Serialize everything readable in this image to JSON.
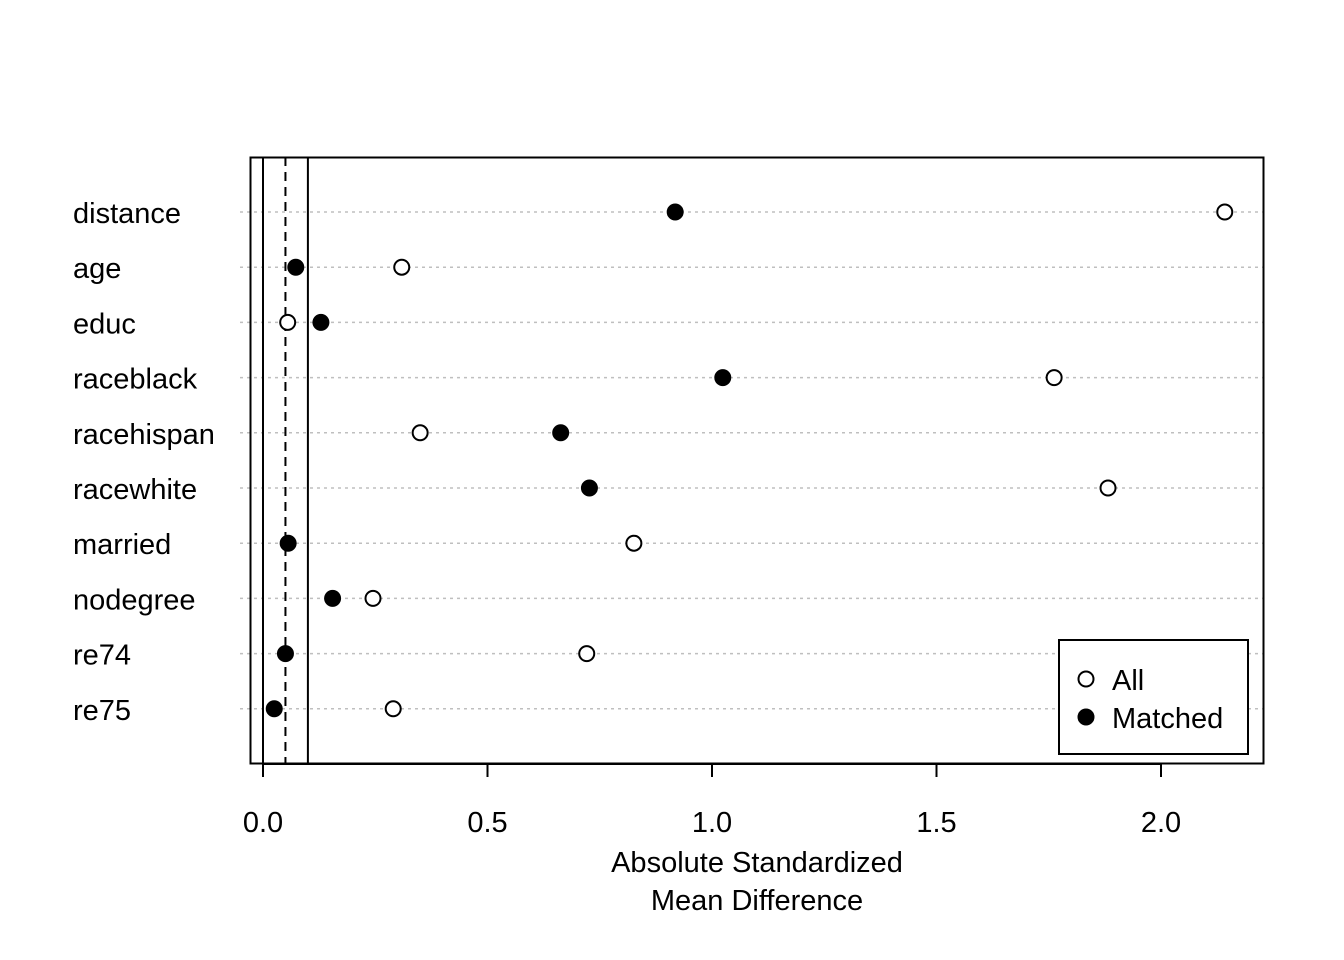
{
  "chart_data": {
    "type": "scatter",
    "title": "",
    "xlabel": [
      "Absolute Standardized",
      "Mean Difference"
    ],
    "ylabel": "",
    "categories": [
      "distance",
      "age",
      "educ",
      "raceblack",
      "racehispan",
      "racewhite",
      "married",
      "nodegree",
      "re74",
      "re75"
    ],
    "series": [
      {
        "name": "All",
        "marker": "open-circle",
        "values": [
          2.142,
          0.309,
          0.055,
          1.762,
          0.35,
          1.882,
          0.826,
          0.245,
          0.721,
          0.29
        ]
      },
      {
        "name": "Matched",
        "marker": "filled-circle",
        "values": [
          0.918,
          0.073,
          0.129,
          1.024,
          0.663,
          0.727,
          0.056,
          0.155,
          0.05,
          0.025
        ]
      }
    ],
    "xlim": [
      0,
      2.15
    ],
    "xticks": [
      0.0,
      0.5,
      1.0,
      1.5,
      2.0
    ],
    "xtick_labels": [
      "0.0",
      "0.5",
      "1.0",
      "1.5",
      "2.0"
    ],
    "reference_lines": [
      {
        "x": 0,
        "style": "solid"
      },
      {
        "x": 0.05,
        "style": "dashed"
      },
      {
        "x": 0.1,
        "style": "solid"
      }
    ],
    "grid": "horizontal dotted",
    "legend_position": "bottom-right"
  }
}
